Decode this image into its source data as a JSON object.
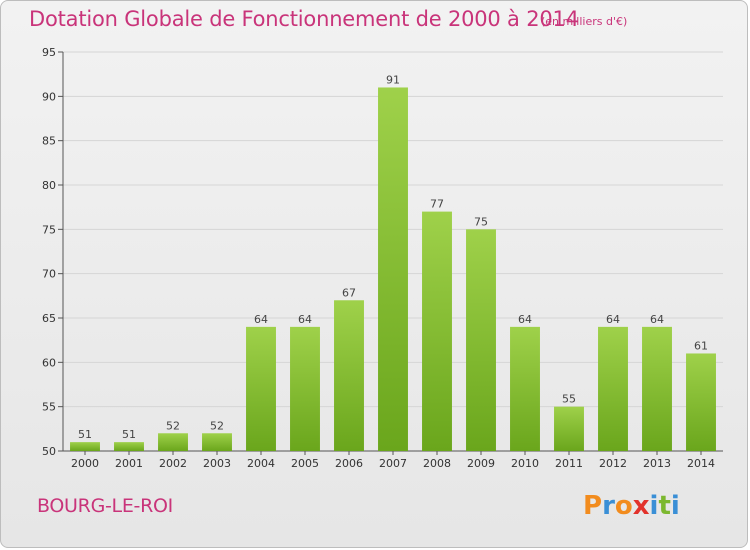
{
  "header": {
    "title": "Dotation Globale de Fonctionnement de 2000 à 2014",
    "subtitle": "(en milliers d'€)"
  },
  "footer": {
    "place": "BOURG-LE-ROI",
    "logo_letters": [
      "P",
      "r",
      "o",
      "x",
      "i",
      "t",
      "i"
    ],
    "logo_colors": [
      "#f28c1e",
      "#3a8fd6",
      "#f28c1e",
      "#e2322b",
      "#3a8fd6",
      "#7cb82f",
      "#3a8fd6"
    ]
  },
  "chart_data": {
    "type": "bar",
    "categories": [
      "2000",
      "2001",
      "2002",
      "2003",
      "2004",
      "2005",
      "2006",
      "2007",
      "2008",
      "2009",
      "2010",
      "2011",
      "2012",
      "2013",
      "2014"
    ],
    "values": [
      51,
      51,
      52,
      52,
      64,
      64,
      67,
      91,
      77,
      75,
      64,
      55,
      64,
      64,
      61
    ],
    "title": "Dotation Globale de Fonctionnement de 2000 à 2014",
    "subtitle": "(en milliers d'€)",
    "xlabel": "",
    "ylabel": "",
    "ylim": [
      50,
      95
    ],
    "yticks": [
      50,
      55,
      60,
      65,
      70,
      75,
      80,
      85,
      90,
      95
    ],
    "grid": true,
    "legend": "none",
    "bar_color_top": "#9fd14a",
    "bar_color_bottom": "#6aa61c",
    "grid_color": "#d5d5d5"
  }
}
